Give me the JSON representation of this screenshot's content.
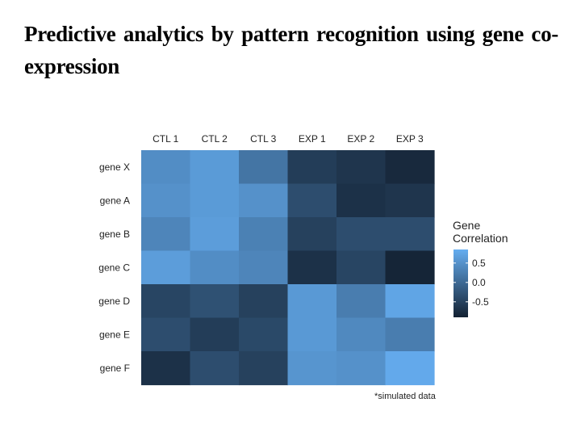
{
  "slide": {
    "title": "Predictive analytics by pattern recognition using gene co-expression",
    "footnote": "*simulated data"
  },
  "chart_data": {
    "type": "heatmap",
    "columns": [
      "CTL 1",
      "CTL 2",
      "CTL 3",
      "EXP 1",
      "EXP 2",
      "EXP 3"
    ],
    "rows": [
      "gene X",
      "gene A",
      "gene B",
      "gene C",
      "gene D",
      "gene E",
      "gene F"
    ],
    "values": [
      [
        0.45,
        0.62,
        0.15,
        -0.55,
        -0.65,
        -0.8
      ],
      [
        0.5,
        0.62,
        0.5,
        -0.35,
        -0.7,
        -0.65
      ],
      [
        0.35,
        0.65,
        0.3,
        -0.5,
        -0.35,
        -0.35
      ],
      [
        0.65,
        0.45,
        0.35,
        -0.7,
        -0.45,
        -0.85
      ],
      [
        -0.45,
        -0.3,
        -0.5,
        0.6,
        0.25,
        0.75
      ],
      [
        -0.35,
        -0.55,
        -0.4,
        0.6,
        0.4,
        0.25
      ],
      [
        -0.7,
        -0.35,
        -0.5,
        0.55,
        0.5,
        0.8
      ]
    ],
    "legend": {
      "title": [
        "Gene",
        "Correlation"
      ],
      "ticks": [
        0.5,
        0.0,
        -0.5
      ],
      "tick_labels": [
        "0.5",
        "0.0",
        "-0.5"
      ],
      "range": [
        -0.9,
        0.85
      ],
      "low_color": "#132132",
      "high_color": "#65adf0",
      "placement": "right"
    }
  }
}
